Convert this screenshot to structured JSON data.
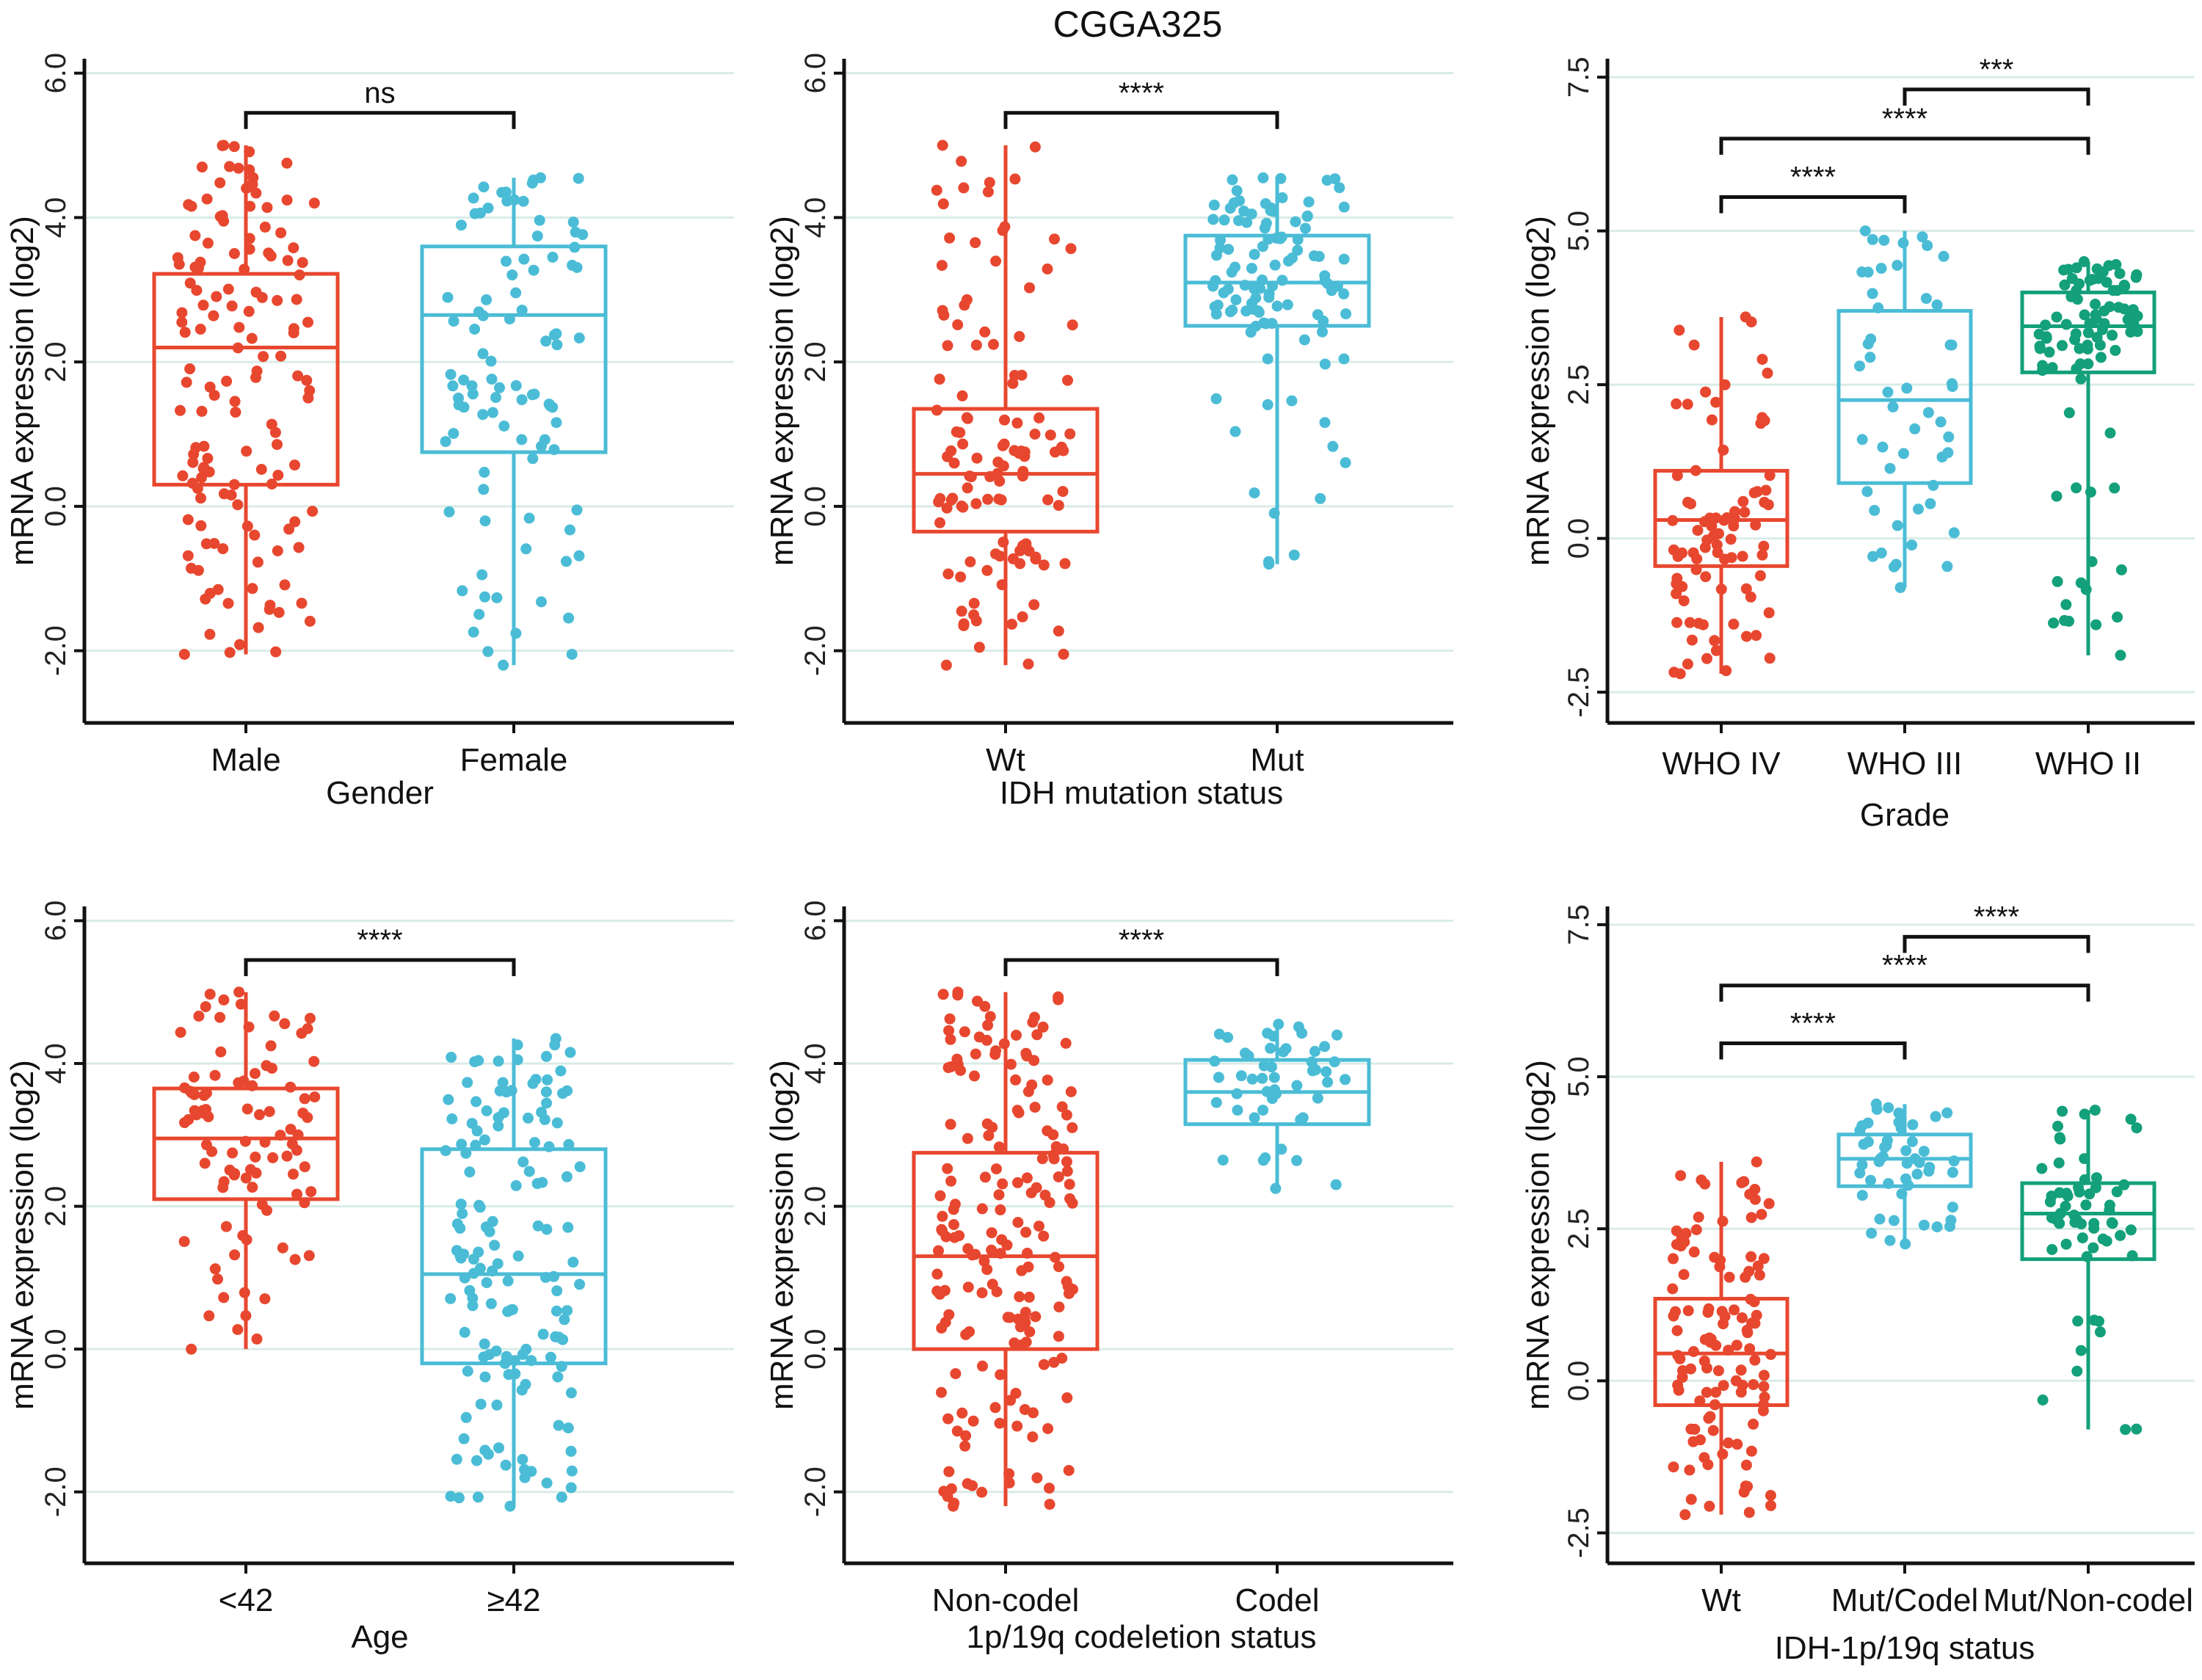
{
  "figure_title": "CGGA325",
  "colors": {
    "red": "#e8472f",
    "blue": "#4bbcd6",
    "green": "#13a07a"
  },
  "chart_data": [
    {
      "type": "box",
      "id": "gender",
      "xlabel": "Gender",
      "ylabel": "mRNA expression (log2)",
      "ylim": [
        -3,
        6.2
      ],
      "yticks": [
        -2.0,
        0.0,
        2.0,
        4.0,
        6.0
      ],
      "ytick_labels": [
        "-2.0",
        "0.0",
        "2.0",
        "4.0",
        "6.0"
      ],
      "categories": [
        "Male",
        "Female"
      ],
      "colors": [
        "#e8472f",
        "#4bbcd6"
      ],
      "boxes": [
        {
          "min": -2.05,
          "q1": 0.3,
          "median": 2.2,
          "q3": 3.22,
          "max": 5.0,
          "n": 140
        },
        {
          "min": -2.2,
          "q1": 0.75,
          "median": 2.65,
          "q3": 3.6,
          "max": 4.55,
          "n": 95
        }
      ],
      "comparisons": [
        {
          "from": 0,
          "to": 1,
          "label": "ns",
          "y": 5.45
        }
      ]
    },
    {
      "type": "box",
      "id": "idh",
      "xlabel": "IDH mutation status",
      "ylabel": "mRNA expression (log2)",
      "ylim": [
        -3,
        6.2
      ],
      "yticks": [
        -2.0,
        0.0,
        2.0,
        4.0,
        6.0
      ],
      "ytick_labels": [
        "-2.0",
        "0.0",
        "2.0",
        "4.0",
        "6.0"
      ],
      "categories": [
        "Wt",
        "Mut"
      ],
      "colors": [
        "#e8472f",
        "#4bbcd6"
      ],
      "boxes": [
        {
          "min": -2.2,
          "q1": -0.35,
          "median": 0.45,
          "q3": 1.35,
          "max": 5.0,
          "n": 120
        },
        {
          "min": -0.8,
          "q1": 2.5,
          "median": 3.1,
          "q3": 3.75,
          "max": 4.55,
          "n": 110
        }
      ],
      "comparisons": [
        {
          "from": 0,
          "to": 1,
          "label": "****",
          "y": 5.45
        }
      ]
    },
    {
      "type": "box",
      "id": "grade",
      "xlabel": "Grade",
      "ylabel": "mRNA expression (log2)",
      "ylim": [
        -3,
        7.8
      ],
      "yticks": [
        -2.5,
        0.0,
        2.5,
        5.0,
        7.5
      ],
      "ytick_labels": [
        "-2.5",
        "0.0",
        "2.5",
        "5.0",
        "7.5"
      ],
      "categories": [
        "WHO IV",
        "WHO III",
        "WHO II"
      ],
      "colors": [
        "#e8472f",
        "#4bbcd6",
        "#13a07a"
      ],
      "boxes": [
        {
          "min": -2.2,
          "q1": -0.45,
          "median": 0.3,
          "q3": 1.1,
          "max": 3.6,
          "n": 85
        },
        {
          "min": -0.8,
          "q1": 0.9,
          "median": 2.25,
          "q3": 3.7,
          "max": 5.0,
          "n": 50
        },
        {
          "min": -1.9,
          "q1": 2.7,
          "median": 3.45,
          "q3": 4.0,
          "max": 4.5,
          "n": 90
        }
      ],
      "comparisons": [
        {
          "from": 0,
          "to": 1,
          "label": "****",
          "y": 5.55
        },
        {
          "from": 0,
          "to": 2,
          "label": "****",
          "y": 6.5
        },
        {
          "from": 1,
          "to": 2,
          "label": "***",
          "y": 7.3
        }
      ]
    },
    {
      "type": "box",
      "id": "age",
      "xlabel": "Age",
      "ylabel": "mRNA expression (log2)",
      "ylim": [
        -3,
        6.2
      ],
      "yticks": [
        -2.0,
        0.0,
        2.0,
        4.0,
        6.0
      ],
      "ytick_labels": [
        "-2.0",
        "0.0",
        "2.0",
        "4.0",
        "6.0"
      ],
      "categories": [
        "<42",
        "≥42"
      ],
      "colors": [
        "#e8472f",
        "#4bbcd6"
      ],
      "boxes": [
        {
          "min": 0.0,
          "q1": 2.1,
          "median": 2.95,
          "q3": 3.65,
          "max": 5.0,
          "n": 95
        },
        {
          "min": -2.2,
          "q1": -0.2,
          "median": 1.05,
          "q3": 2.8,
          "max": 4.35,
          "n": 145
        }
      ],
      "comparisons": [
        {
          "from": 0,
          "to": 1,
          "label": "****",
          "y": 5.45
        }
      ]
    },
    {
      "type": "box",
      "id": "codel",
      "xlabel": "1p/19q codeletion status",
      "ylabel": "mRNA expression (log2)",
      "ylim": [
        -3,
        6.2
      ],
      "yticks": [
        -2.0,
        0.0,
        2.0,
        4.0,
        6.0
      ],
      "ytick_labels": [
        "-2.0",
        "0.0",
        "2.0",
        "4.0",
        "6.0"
      ],
      "categories": [
        "Non-codel",
        "Codel"
      ],
      "colors": [
        "#e8472f",
        "#4bbcd6"
      ],
      "boxes": [
        {
          "min": -2.2,
          "q1": 0.0,
          "median": 1.3,
          "q3": 2.75,
          "max": 5.0,
          "n": 180
        },
        {
          "min": 2.25,
          "q1": 3.15,
          "median": 3.6,
          "q3": 4.05,
          "max": 4.55,
          "n": 50
        }
      ],
      "comparisons": [
        {
          "from": 0,
          "to": 1,
          "label": "****",
          "y": 5.45
        }
      ]
    },
    {
      "type": "box",
      "id": "idh1p19q",
      "xlabel": "IDH-1p/19q status",
      "ylabel": "mRNA expression (log2)",
      "ylim": [
        -3,
        7.8
      ],
      "yticks": [
        -2.5,
        0.0,
        2.5,
        5.0,
        7.5
      ],
      "ytick_labels": [
        "-2.5",
        "0.0",
        "2.5",
        "5.0",
        "7.5"
      ],
      "categories": [
        "Wt",
        "Mut/Codel",
        "Mut/Non-codel"
      ],
      "colors": [
        "#e8472f",
        "#4bbcd6",
        "#13a07a"
      ],
      "boxes": [
        {
          "min": -2.2,
          "q1": -0.4,
          "median": 0.45,
          "q3": 1.35,
          "max": 3.6,
          "n": 115
        },
        {
          "min": 2.25,
          "q1": 3.2,
          "median": 3.65,
          "q3": 4.05,
          "max": 4.55,
          "n": 50
        },
        {
          "min": -0.8,
          "q1": 2.0,
          "median": 2.75,
          "q3": 3.25,
          "max": 4.45,
          "n": 60
        }
      ],
      "comparisons": [
        {
          "from": 0,
          "to": 1,
          "label": "****",
          "y": 5.55
        },
        {
          "from": 0,
          "to": 2,
          "label": "****",
          "y": 6.5
        },
        {
          "from": 1,
          "to": 2,
          "label": "****",
          "y": 7.3
        }
      ]
    }
  ]
}
